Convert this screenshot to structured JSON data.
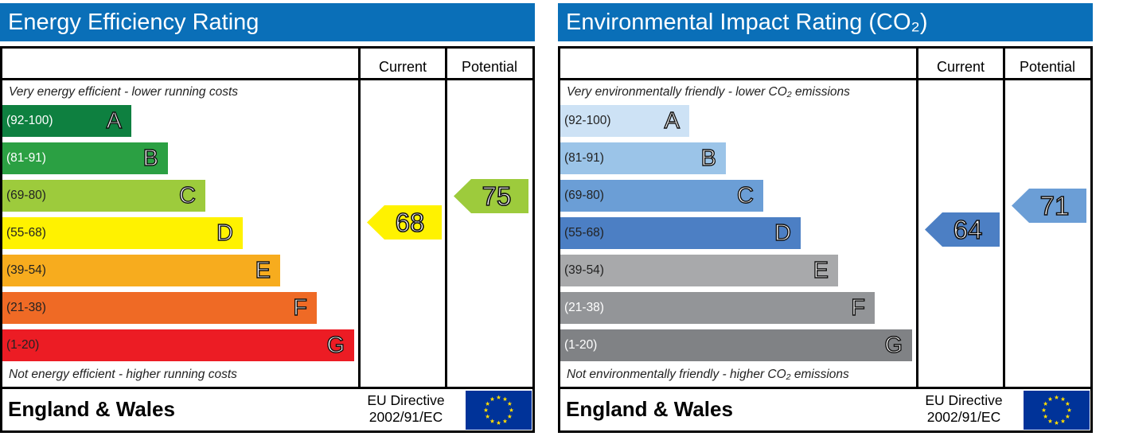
{
  "chart_data": [
    {
      "type": "bar",
      "title": "Energy Efficiency Rating",
      "column_headers": {
        "current": "Current",
        "potential": "Potential"
      },
      "top_note": "Very energy efficient - lower running costs",
      "bottom_note": "Not energy efficient - higher running costs",
      "bands": [
        {
          "range": "(92-100)",
          "letter": "A",
          "color": "#0e8040",
          "text_color": "#ffffff",
          "rank": 1
        },
        {
          "range": "(81-91)",
          "letter": "B",
          "color": "#2ba043",
          "text_color": "#ffffff",
          "rank": 2
        },
        {
          "range": "(69-80)",
          "letter": "C",
          "color": "#9dcb3c",
          "text_color": "#222222",
          "rank": 3
        },
        {
          "range": "(55-68)",
          "letter": "D",
          "color": "#fff200",
          "text_color": "#222222",
          "rank": 4
        },
        {
          "range": "(39-54)",
          "letter": "E",
          "color": "#f7ac1e",
          "text_color": "#222222",
          "rank": 5
        },
        {
          "range": "(21-38)",
          "letter": "F",
          "color": "#ef6a25",
          "text_color": "#222222",
          "rank": 6
        },
        {
          "range": "(1-20)",
          "letter": "G",
          "color": "#ec1c24",
          "text_color": "#222222",
          "rank": 7
        }
      ],
      "current": {
        "value": 68,
        "color": "#fff200"
      },
      "potential": {
        "value": 75,
        "color": "#9dcb3c"
      },
      "footer": {
        "country": "England & Wales",
        "directive_line1": "EU Directive",
        "directive_line2": "2002/91/EC"
      }
    },
    {
      "type": "bar",
      "title": "Environmental Impact Rating (CO₂)",
      "column_headers": {
        "current": "Current",
        "potential": "Potential"
      },
      "top_note": "Very environmentally friendly - lower CO₂ emissions",
      "bottom_note": "Not environmentally friendly - higher CO₂ emissions",
      "bands": [
        {
          "range": "(92-100)",
          "letter": "A",
          "color": "#cde2f5",
          "text_color": "#222222",
          "rank": 1
        },
        {
          "range": "(81-91)",
          "letter": "B",
          "color": "#9bc4e8",
          "text_color": "#222222",
          "rank": 2
        },
        {
          "range": "(69-80)",
          "letter": "C",
          "color": "#6b9ed6",
          "text_color": "#222222",
          "rank": 3
        },
        {
          "range": "(55-68)",
          "letter": "D",
          "color": "#4c7fc4",
          "text_color": "#222222",
          "rank": 4
        },
        {
          "range": "(39-54)",
          "letter": "E",
          "color": "#a8a9ab",
          "text_color": "#222222",
          "rank": 5
        },
        {
          "range": "(21-38)",
          "letter": "F",
          "color": "#939598",
          "text_color": "#ffffff",
          "rank": 6
        },
        {
          "range": "(1-20)",
          "letter": "G",
          "color": "#808285",
          "text_color": "#ffffff",
          "rank": 7
        }
      ],
      "current": {
        "value": 64,
        "color": "#4c7fc4"
      },
      "potential": {
        "value": 71,
        "color": "#6b9ed6"
      },
      "footer": {
        "country": "England & Wales",
        "directive_line1": "EU Directive",
        "directive_line2": "2002/91/EC"
      }
    }
  ]
}
